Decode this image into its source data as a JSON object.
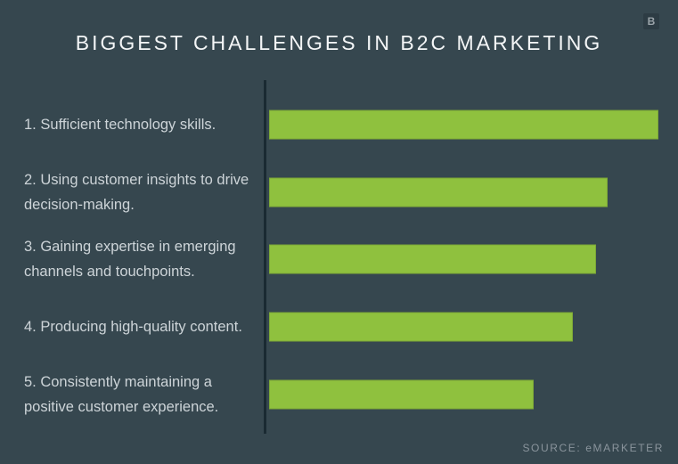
{
  "page": {
    "background_color": "#36474f",
    "accent_green": "#8fc13e"
  },
  "header": {
    "title": "BIGGEST CHALLENGES IN B2C MARKETING",
    "logo_letter": "B"
  },
  "footer": {
    "source_label": "SOURCE: eMARKETER"
  },
  "chart_data": {
    "type": "bar",
    "orientation": "horizontal",
    "title": "BIGGEST CHALLENGES IN B2C MARKETING",
    "categories": [
      "1. Sufficient technology skills.",
      "2. Using customer insights to drive decision-making.",
      "3. Gaining expertise in emerging channels and touchpoints.",
      "4. Producing high-quality content.",
      "5. Consistently maintaining a positive customer experience."
    ],
    "values": [
      100,
      87,
      84,
      78,
      68
    ],
    "value_unit": "percent of longest bar (no numeric axis shown)",
    "value_labels_shown": false,
    "grid": false,
    "legend": false,
    "bar_color": "#8fc13e",
    "axis_color": "#1a2a32",
    "label_color": "#cdd4d8",
    "source": "SOURCE: eMARKETER"
  }
}
